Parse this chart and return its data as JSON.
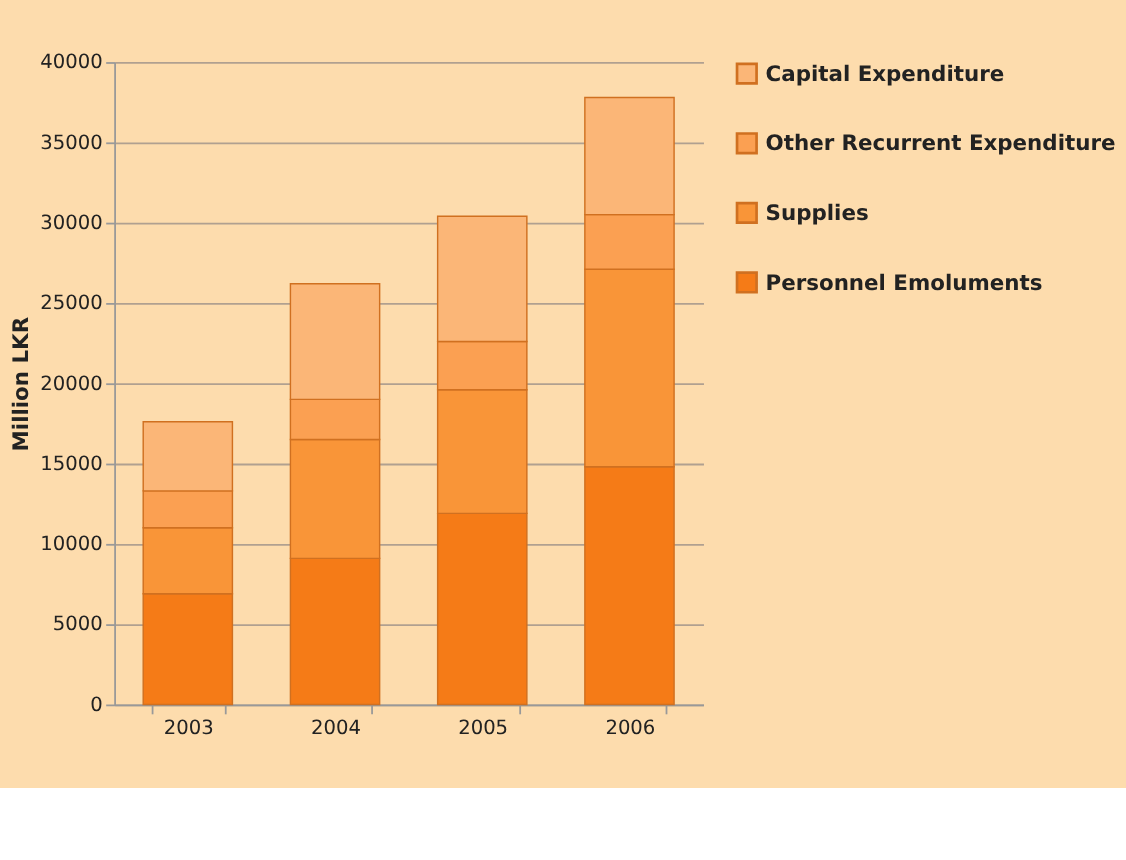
{
  "chart_data": {
    "type": "bar",
    "stacked": true,
    "ylabel": "Million LKR",
    "categories": [
      "2003",
      "2004",
      "2005",
      "2006"
    ],
    "series": [
      {
        "name": "Personnel Emoluments",
        "color": "#f57b17",
        "values": [
          6900,
          9100,
          11900,
          14800
        ]
      },
      {
        "name": "Supplies",
        "color": "#f99538",
        "values": [
          4100,
          7400,
          7700,
          12300
        ]
      },
      {
        "name": "Other Recurrent Expenditure",
        "color": "#fba052",
        "values": [
          2300,
          2500,
          3000,
          3400
        ]
      },
      {
        "name": "Capital Expenditure",
        "color": "#fbb677",
        "values": [
          4300,
          7200,
          7800,
          7300
        ]
      }
    ],
    "ylim": [
      0,
      40000
    ],
    "yticks": [
      0,
      5000,
      10000,
      15000,
      20000,
      25000,
      30000,
      35000,
      40000
    ],
    "grid": "y",
    "legend": "right"
  }
}
